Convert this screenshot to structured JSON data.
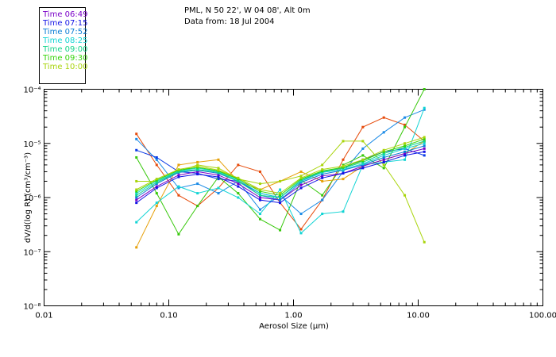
{
  "header": {
    "site": "PML, N 50 22', W 04 08', Alt 0m",
    "date_line": "Data from: 18 Jul 2004"
  },
  "chart_data": {
    "type": "line",
    "title": "PML, N 50 22', W 04 08', Alt 0m",
    "subtitle": "Data from: 18 Jul 2004",
    "xlabel": "Aerosol Size (µm)",
    "ylabel": "dV/d(log R) (cm³/cm⁻³)",
    "xscale": "log",
    "yscale": "log",
    "xlim": [
      0.01,
      100
    ],
    "ylim": [
      1e-08,
      0.0001
    ],
    "x_ticks": [
      "0.01",
      "0.10",
      "1.00",
      "10.00",
      "100.00"
    ],
    "y_ticks": [
      "10⁻⁸",
      "10⁻⁷",
      "10⁻⁶",
      "10⁻⁵",
      "10⁻⁴"
    ],
    "legend_position": "top-left outside",
    "x": [
      0.055,
      0.08,
      0.12,
      0.17,
      0.25,
      0.36,
      0.54,
      0.78,
      1.15,
      1.7,
      2.5,
      3.6,
      5.3,
      7.8,
      11.2
    ],
    "series": [
      {
        "name": "Time 06:49",
        "color": "#7a00c8",
        "values": [
          9e-07,
          1.6e-06,
          2.6e-06,
          3e-06,
          2.6e-06,
          1.8e-06,
          1e-06,
          9e-07,
          1.7e-06,
          2.5e-06,
          2.8e-06,
          3.8e-06,
          5e-06,
          6.5e-06,
          8e-06
        ]
      },
      {
        "name": "Time 07:15",
        "color": "#1515e6",
        "values": [
          8e-07,
          1.5e-06,
          2.4e-06,
          2.7e-06,
          2.4e-06,
          1.6e-06,
          9e-07,
          8e-07,
          1.5e-06,
          2.3e-06,
          2.8e-06,
          3.5e-06,
          4.5e-06,
          6e-06,
          7e-06
        ]
      },
      {
        "name": "Time 07:52",
        "color": "#0a7dd6",
        "values": [
          1e-06,
          1.8e-06,
          2.9e-06,
          3.2e-06,
          2.8e-06,
          2e-06,
          1.1e-06,
          9e-07,
          1.9e-06,
          2.7e-06,
          3.2e-06,
          4e-06,
          5.5e-06,
          7e-06,
          9e-06
        ]
      },
      {
        "name": "Time 08:25",
        "color": "#12d4d4",
        "values": [
          1.2e-06,
          2e-06,
          3.1e-06,
          3.5e-06,
          3e-06,
          2.1e-06,
          1.2e-06,
          1e-06,
          2e-06,
          2.9e-06,
          3.3e-06,
          4.2e-06,
          6e-06,
          8e-06,
          1e-05
        ]
      },
      {
        "name": "Time 09:00",
        "color": "#12d48a",
        "values": [
          1.1e-06,
          1.9e-06,
          3e-06,
          3.3e-06,
          2.9e-06,
          2e-06,
          1.1e-06,
          1e-06,
          2.1e-06,
          3e-06,
          3.5e-06,
          4.5e-06,
          6.5e-06,
          8.5e-06,
          1.1e-05
        ]
      },
      {
        "name": "Time 09:30",
        "color": "#36d40a",
        "values": [
          1.3e-06,
          2.1e-06,
          3.2e-06,
          3.6e-06,
          3.1e-06,
          2.2e-06,
          1.3e-06,
          1.1e-06,
          2.2e-06,
          3.1e-06,
          3.6e-06,
          4.8e-06,
          7e-06,
          9e-06,
          1.2e-05
        ]
      },
      {
        "name": "Time 10:00",
        "color": "#a8d40a",
        "values": [
          1.4e-06,
          2.2e-06,
          3.3e-06,
          3.8e-06,
          3.2e-06,
          2.3e-06,
          1.4e-06,
          1.2e-06,
          2.3e-06,
          3.3e-06,
          3.8e-06,
          5e-06,
          7.5e-06,
          1e-05,
          1.3e-05
        ]
      }
    ],
    "extra_lines": [
      {
        "color": "#e64a0a",
        "values": [
          1.5e-05,
          4e-06,
          1.1e-06,
          7e-07,
          1.5e-06,
          4e-06,
          3e-06,
          8e-07,
          2.6e-07,
          9e-07,
          5e-06,
          2e-05,
          3e-05,
          2.2e-05,
          1.1e-05
        ]
      },
      {
        "color": "#1a8ae6",
        "values": [
          1.2e-05,
          5e-06,
          1.5e-06,
          1.8e-06,
          1.2e-06,
          2e-06,
          6e-07,
          1.1e-06,
          5e-07,
          9e-07,
          3e-06,
          8e-06,
          1.6e-05,
          3e-05,
          4.2e-05
        ]
      },
      {
        "color": "#0a3ae6",
        "values": [
          7.5e-06,
          5.5e-06,
          3e-06,
          2.8e-06,
          2.2e-06,
          2e-06,
          1.2e-06,
          1e-06,
          2e-06,
          3e-06,
          3.5e-06,
          5e-06,
          7e-06,
          8e-06,
          6e-06
        ]
      },
      {
        "color": "#36c80a",
        "values": [
          5.5e-06,
          1.2e-06,
          2.1e-07,
          7e-07,
          2.4e-06,
          1.2e-06,
          4e-07,
          2.5e-07,
          2.1e-06,
          1.1e-06,
          4e-06,
          6e-06,
          3.5e-06,
          2e-05,
          0.0001
        ]
      },
      {
        "color": "#e6a00a",
        "values": [
          1.2e-07,
          7e-07,
          4e-06,
          4.5e-06,
          5e-06,
          2e-06,
          1.4e-06,
          2e-06,
          3e-06,
          2e-06,
          2.2e-06,
          3.8e-06,
          5e-06,
          6.5e-06,
          1.1e-05
        ]
      },
      {
        "color": "#a8d40a",
        "values": [
          2e-06,
          2e-06,
          3e-06,
          4e-06,
          3.5e-06,
          2.2e-06,
          1.8e-06,
          2e-06,
          2.5e-06,
          4e-06,
          1.1e-05,
          1.1e-05,
          4e-06,
          1.1e-06,
          1.5e-07
        ]
      },
      {
        "color": "#12d4d4",
        "values": [
          3.5e-07,
          8e-07,
          1.6e-06,
          1.2e-06,
          1.5e-06,
          1e-06,
          5e-07,
          1.4e-06,
          2.2e-07,
          5e-07,
          5.5e-07,
          4e-06,
          4.5e-06,
          5e-06,
          4.5e-05
        ]
      }
    ]
  }
}
